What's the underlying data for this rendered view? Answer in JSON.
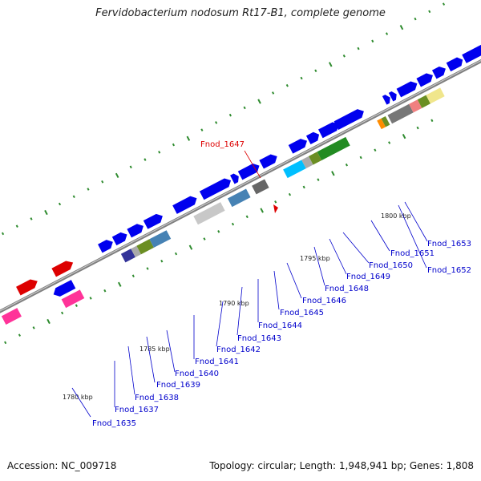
{
  "title": "Fervidobacterium nodosum Rt17-B1, complete genome",
  "footer": {
    "accession": "Accession: NC_009718",
    "summary": "Topology: circular; Length: 1,948,941 bp; Genes: 1,808"
  },
  "colors": {
    "backbone": "#808080",
    "tick": "#2e8b2e",
    "label_normal": "#0000cc",
    "label_highlight": "#dd0000",
    "leader": "#0000cc"
  },
  "scale_labels": [
    "1780 kbp",
    "1785 kbp",
    "1790 kbp",
    "1795 kbp",
    "1800 kbp"
  ],
  "gene_labels": [
    {
      "id": "Fnod_1635",
      "text": "Fnod_1635"
    },
    {
      "id": "Fnod_1637",
      "text": "Fnod_1637"
    },
    {
      "id": "Fnod_1638",
      "text": "Fnod_1638"
    },
    {
      "id": "Fnod_1639",
      "text": "Fnod_1639"
    },
    {
      "id": "Fnod_1640",
      "text": "Fnod_1640"
    },
    {
      "id": "Fnod_1641",
      "text": "Fnod_1641"
    },
    {
      "id": "Fnod_1642",
      "text": "Fnod_1642"
    },
    {
      "id": "Fnod_1643",
      "text": "Fnod_1643"
    },
    {
      "id": "Fnod_1644",
      "text": "Fnod_1644"
    },
    {
      "id": "Fnod_1645",
      "text": "Fnod_1645"
    },
    {
      "id": "Fnod_1646",
      "text": "Fnod_1646"
    },
    {
      "id": "Fnod_1648",
      "text": "Fnod_1648"
    },
    {
      "id": "Fnod_1649",
      "text": "Fnod_1649"
    },
    {
      "id": "Fnod_1650",
      "text": "Fnod_1650"
    },
    {
      "id": "Fnod_1651",
      "text": "Fnod_1651"
    },
    {
      "id": "Fnod_1653",
      "text": "Fnod_1653"
    },
    {
      "id": "Fnod_1652",
      "text": "Fnod_1652"
    },
    {
      "id": "Fnod_1647",
      "text": "Fnod_1647",
      "highlight": true
    }
  ]
}
